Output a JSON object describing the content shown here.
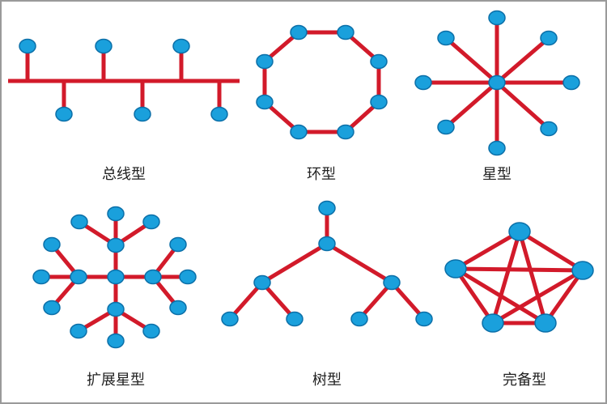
{
  "labels": {
    "bus": "总线型",
    "ring": "环型",
    "star": "星型",
    "extended_star": "扩展星型",
    "tree": "树型",
    "full_mesh": "完备型"
  },
  "colors": {
    "edge": "#d21a2a",
    "node": "#1aa0dc",
    "node_stroke": "#0b6fa8",
    "border": "#9a9a9a"
  }
}
